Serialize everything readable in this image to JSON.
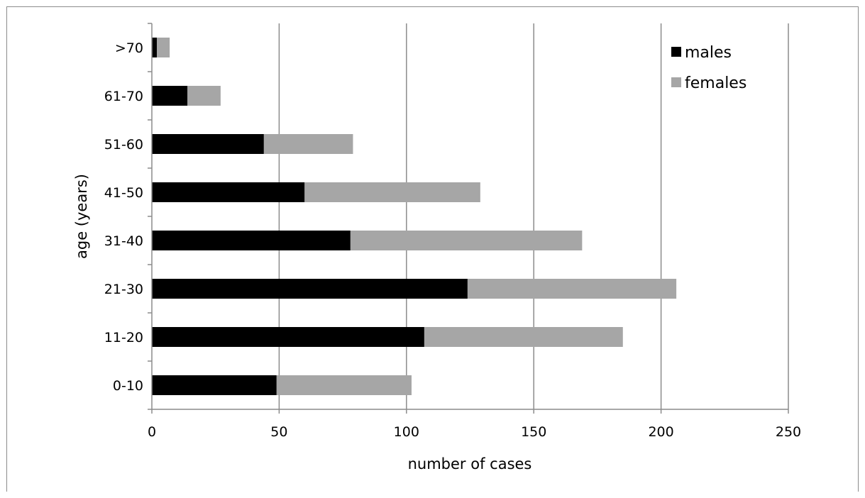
{
  "chart_data": {
    "type": "bar",
    "orientation": "horizontal",
    "stacked": true,
    "categories": [
      "0-10",
      "11-20",
      "21-30",
      "31-40",
      "41-50",
      "51-60",
      "61-70",
      ">70"
    ],
    "series": [
      {
        "name": "males",
        "color": "#000000",
        "values": [
          49,
          107,
          124,
          78,
          60,
          44,
          14,
          2
        ]
      },
      {
        "name": "females",
        "color": "#a6a6a6",
        "values": [
          53,
          78,
          82,
          91,
          69,
          35,
          13,
          5
        ]
      }
    ],
    "xlabel": "number of cases",
    "ylabel": "age (years)",
    "xlim": [
      0,
      250
    ],
    "xticks": [
      "0",
      "50",
      "100",
      "150",
      "200",
      "250"
    ],
    "grid": "vertical",
    "legend": "top-right"
  }
}
